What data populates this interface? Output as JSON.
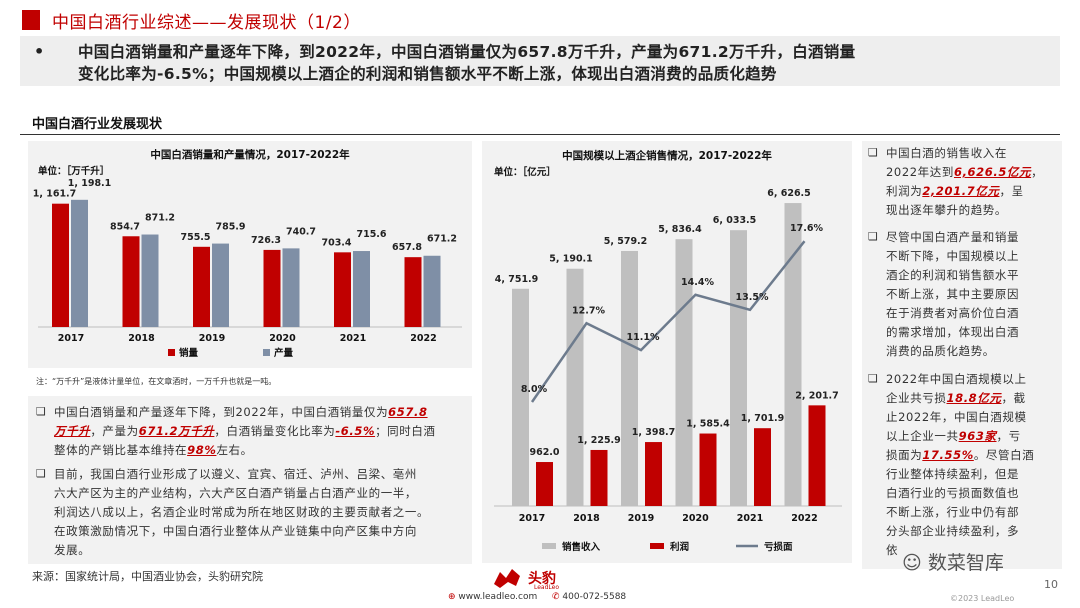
{
  "header": {
    "title": "中国白酒行业综述——发展现状（1/2）",
    "summary_bullet": "•",
    "summary_line1": "中国白酒销量和产量逐年下降，到2022年，中国白酒销量仅为657.8万千升，产量为671.2万千升，白酒销量",
    "summary_line2": "变化比率为-6.5%；中国规模以上酒企的利润和销售额水平不断上涨，体现出白酒消费的品质化趋势"
  },
  "section_title": "中国白酒行业发展现状",
  "chart_data": [
    {
      "type": "bar",
      "title": "中国白酒销量和产量情况，2017-2022年",
      "unit": "单位：［万千升］",
      "categories": [
        "2017",
        "2018",
        "2019",
        "2020",
        "2021",
        "2022"
      ],
      "series": [
        {
          "name": "销量",
          "values": [
            1161.7,
            854.7,
            755.5,
            726.3,
            703.4,
            657.8
          ],
          "labels": [
            "1, 161.7",
            "854.7",
            "755.5",
            "726.3",
            "703.4",
            "657.8"
          ],
          "color": "#c00000"
        },
        {
          "name": "产量",
          "values": [
            1198.1,
            871.2,
            785.9,
            740.7,
            715.6,
            671.2
          ],
          "labels": [
            "1, 198.1",
            "871.2",
            "785.9",
            "740.7",
            "715.6",
            "671.2"
          ],
          "color": "#7f8fa6"
        }
      ],
      "ylim": [
        0,
        1300
      ]
    },
    {
      "type": "bar",
      "title": "中国规模以上酒企销售情况，2017-2022年",
      "unit": "单位：［亿元］",
      "categories": [
        "2017",
        "2018",
        "2019",
        "2020",
        "2021",
        "2022"
      ],
      "series": [
        {
          "name": "销售收入",
          "values": [
            4751.9,
            5190.1,
            5579.2,
            5836.4,
            6033.5,
            6626.5
          ],
          "labels": [
            "4, 751.9",
            "5, 190.1",
            "5, 579.2",
            "5, 836.4",
            "6, 033.5",
            "6, 626.5"
          ],
          "color": "#bfbfbf"
        },
        {
          "name": "利润",
          "values": [
            962.0,
            1225.9,
            1398.7,
            1585.4,
            1701.9,
            2201.7
          ],
          "labels": [
            "962.0",
            "1, 225.9",
            "1, 398.7",
            "1, 585.4",
            "1, 701.9",
            "2, 201.7"
          ],
          "color": "#c00000"
        }
      ],
      "line": {
        "name": "亏损面",
        "values": [
          8.0,
          12.7,
          11.1,
          14.4,
          13.5,
          17.6
        ],
        "labels": [
          "8.0%",
          "12.7%",
          "11.1%",
          "14.4%",
          "13.5%",
          "17.6%"
        ],
        "color": "#6d7b8d",
        "ylim": [
          0,
          20
        ]
      },
      "ylim": [
        0,
        7000
      ]
    }
  ],
  "note": "注：“万千升”是液体计量单位，在文章酒时，一万千升也就是一吨。",
  "left_text": {
    "checkbox": "❑",
    "p1_l1a": "中国白酒销量和产量逐年下降，到2022年，中国白酒销量仅为",
    "p1_h1": "657.8",
    "p1_h1b": "万千升",
    "p1_l2a": "，产量为",
    "p1_h2": "671.2万千升",
    "p1_l2b": "，白酒销量变化比率为",
    "p1_h3": "-6.5%",
    "p1_l2c": "；同时白酒",
    "p1_l3a": "整体的产销比基本维持在",
    "p1_h4": "98%",
    "p1_l3b": "左右。",
    "p2_l1": "目前，我国白酒行业形成了以遵义、宜宾、宿迁、泸州、吕梁、亳州",
    "p2_l2": "六大产区为主的产业结构，六大产区白酒产销量占白酒产业的一半，",
    "p2_l3": "利润达八成以上，名酒企业时常成为所在地区财政的主要贡献者之一。",
    "p2_l4": "在政策激励情况下，中国白酒行业整体从产业链集中向产区集中方向",
    "p2_l5": "发展。"
  },
  "right_text": {
    "checkbox": "❑",
    "b1_l1": "中国白酒的销售收入在",
    "b1_l2a": "2022年达到",
    "b1_h1": "6,626.5亿元",
    "b1_l2b": "，",
    "b1_l3a": "利润为",
    "b1_h2": "2,201.7亿元",
    "b1_l3b": "，呈",
    "b1_l4": "现出逐年攀升的趋势。",
    "b2_l1": "尽管中国白酒产量和销量",
    "b2_l2": "不断下降，中国规模以上",
    "b2_l3": "酒企的利润和销售额水平",
    "b2_l4": "不断上涨，其中主要原因",
    "b2_l5": "在于消费者对高价位白酒",
    "b2_l6": "的需求增加，体现出白酒",
    "b2_l7": "消费的品质化趋势。",
    "b3_l1": "2022年中国白酒规模以上",
    "b3_l2a": "企业共亏损",
    "b3_h1": "18.8亿元",
    "b3_l2b": "，截",
    "b3_l3": "止2022年，中国白酒规模",
    "b3_l4a": "以上企业一共",
    "b3_h2": "963家",
    "b3_l4b": "，亏",
    "b3_l5a": "损面为",
    "b3_h3": "17.55%",
    "b3_l5b": "。尽管白酒",
    "b3_l6": "行业整体持续盈利，但是",
    "b3_l7": "白酒行业的亏损面数值也",
    "b3_l8": "不断上涨，行业中仍有部",
    "b3_l9": "分头部企业持续盈利，多",
    "b3_l10": "依"
  },
  "footer": {
    "source": "来源：国家统计局，中国酒业协会，头豹研究院",
    "logo": "头豹",
    "logo_sub": "LeadLeo",
    "website": "www.leadleo.com",
    "phone": "400-072-5588",
    "watermark": "数菜智库",
    "page_number": "10",
    "copyright": "©2023 LeadLeo"
  },
  "colors": {
    "accent": "#c00000",
    "grey_bar": "#bfbfbf",
    "blue_grey": "#7f8fa6",
    "line": "#6d7b8d"
  }
}
